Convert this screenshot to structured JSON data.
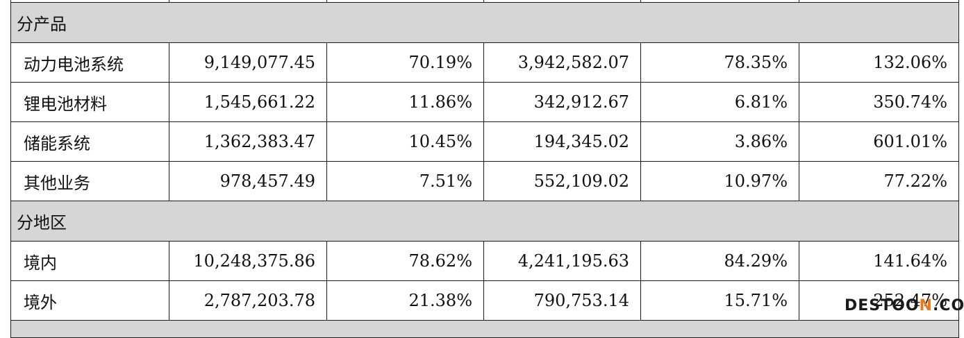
{
  "sections": [
    {
      "label": "分产品",
      "rows": [
        {
          "name": "动力电池系统",
          "values": [
            "9,149,077.45",
            "70.19%",
            "3,942,582.07",
            "78.35%",
            "132.06%"
          ]
        },
        {
          "name": "锂电池材料",
          "values": [
            "1,545,661.22",
            "11.86%",
            "342,912.67",
            "6.81%",
            "350.74%"
          ]
        },
        {
          "name": "储能系统",
          "values": [
            "1,362,383.47",
            "10.45%",
            "194,345.02",
            "3.86%",
            "601.01%"
          ]
        },
        {
          "name": "其他业务",
          "values": [
            "978,457.49",
            "7.51%",
            "552,109.02",
            "10.97%",
            "77.22%"
          ]
        }
      ]
    },
    {
      "label": "分地区",
      "rows": [
        {
          "name": "境内",
          "values": [
            "10,248,375.86",
            "78.62%",
            "4,241,195.63",
            "84.29%",
            "141.64%"
          ]
        },
        {
          "name": "境外",
          "values": [
            "2,787,203.78",
            "21.38%",
            "790,753.14",
            "15.71%",
            "252.47%"
          ]
        }
      ]
    }
  ],
  "watermark": {
    "part1": "DESTOO",
    "part2": "N",
    "part3": ".COM"
  },
  "colors": {
    "section_bg": "#d6d6d6",
    "border": "#1a1a1a",
    "watermark_accent": "#e8781e"
  }
}
